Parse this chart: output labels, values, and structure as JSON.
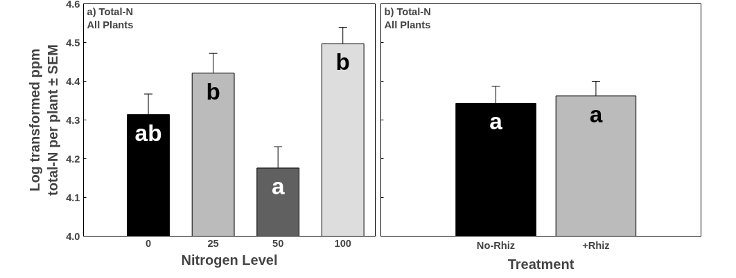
{
  "chart_data": [
    {
      "type": "bar",
      "title": "a) Total-N\nAll Plants",
      "xlabel": "Nitrogen Level",
      "ylabel": "Log transformed ppm\ntotal-N per plant ± SEM",
      "categories": [
        "0",
        "25",
        "50",
        "100"
      ],
      "values": [
        4.314,
        4.421,
        4.176,
        4.497
      ],
      "colors": [
        "#000000",
        "#bbbbbb",
        "#606060",
        "#dddddd"
      ],
      "errors": [
        [
          4.314,
          4.367
        ],
        [
          4.421,
          4.472
        ],
        [
          4.176,
          4.231
        ],
        [
          4.497,
          4.539
        ]
      ],
      "ylim": [
        4.0,
        4.6
      ],
      "yticks": [
        {
          "value": 4.0,
          "label": "4.0"
        },
        4.1,
        4.2,
        4.3,
        4.4,
        4.5,
        4.6
      ],
      "grid": false,
      "annotations": [
        "ab",
        "b",
        "a",
        "b"
      ]
    },
    {
      "type": "bar",
      "title": "b) Total-N\nAll Plants",
      "xlabel": "Treatment",
      "categories": [
        "No-Rhiz",
        "+Rhiz"
      ],
      "values": [
        4.343,
        4.362
      ],
      "colors": [
        "#000000",
        "#bbbbbb"
      ],
      "errors": [
        [
          4.343,
          4.387
        ],
        [
          4.362,
          4.4
        ]
      ],
      "ylim": [
        4.0,
        4.6
      ],
      "yticks": [
        4.0,
        4.1,
        4.2,
        4.3,
        4.4,
        4.5,
        4.6
      ],
      "tick_labels": "x",
      "grid": false,
      "annotations": [
        "a",
        "a"
      ]
    }
  ]
}
